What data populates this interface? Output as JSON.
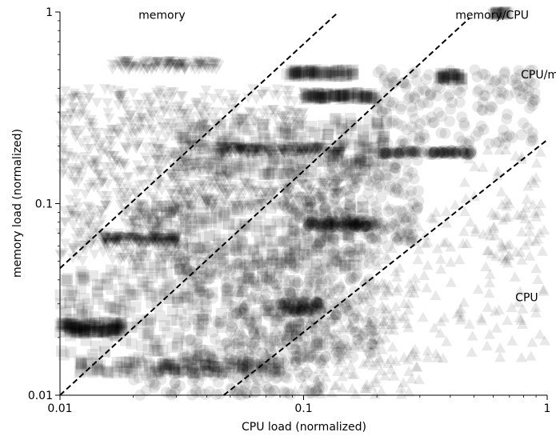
{
  "chart_data": {
    "type": "scatter",
    "title": "",
    "xlabel": "CPU load (normalized)",
    "ylabel": "memory load (normalized)",
    "x_scale": "log",
    "y_scale": "log",
    "xlim": [
      0.01,
      1
    ],
    "ylim": [
      0.01,
      1
    ],
    "x_ticks": [
      {
        "value": 0.01,
        "label": "0.01"
      },
      {
        "value": 0.1,
        "label": "0.1"
      },
      {
        "value": 1,
        "label": "1"
      }
    ],
    "y_ticks": [
      {
        "value": 0.01,
        "label": "0.01"
      },
      {
        "value": 0.1,
        "label": "0.1"
      },
      {
        "value": 1,
        "label": "1"
      }
    ],
    "grid": false,
    "legend": "none",
    "marker_color": "#000000",
    "marker_alpha": 0.09,
    "regions": [
      {
        "label": "memory",
        "x": 0.021,
        "y": 0.92
      },
      {
        "label": "memory/CPU",
        "x": 0.42,
        "y": 0.92
      },
      {
        "label": "CPU/memory",
        "x": 0.78,
        "y": 0.45
      },
      {
        "label": "CPU",
        "x": 0.74,
        "y": 0.031
      }
    ],
    "boundaries": [
      {
        "x": [
          0.01,
          0.139
        ],
        "y": [
          0.046,
          1.0
        ]
      },
      {
        "x": [
          0.01,
          0.48
        ],
        "y": [
          0.01,
          0.93
        ]
      },
      {
        "x": [
          0.047,
          1.0
        ],
        "y": [
          0.01,
          0.215
        ]
      }
    ],
    "series": [
      {
        "marker": "triangle-down",
        "clusters": [
          {
            "x": [
              0.016,
              0.045
            ],
            "y": [
              0.5,
              0.56
            ],
            "n": 120
          },
          {
            "x": [
              0.01,
              0.1
            ],
            "y": [
              0.25,
              0.4
            ],
            "n": 200
          },
          {
            "x": [
              0.01,
              0.05
            ],
            "y": [
              0.12,
              0.25
            ],
            "n": 260
          },
          {
            "x": [
              0.01,
              0.035
            ],
            "y": [
              0.05,
              0.12
            ],
            "n": 240
          },
          {
            "x": [
              0.015,
              0.03
            ],
            "y": [
              0.062,
              0.068
            ],
            "n": 140
          },
          {
            "x": [
              0.03,
              0.14
            ],
            "y": [
              0.095,
              0.13
            ],
            "n": 180
          },
          {
            "x": [
              0.045,
              0.15
            ],
            "y": [
              0.18,
              0.2
            ],
            "n": 200
          }
        ]
      },
      {
        "marker": "square",
        "clusters": [
          {
            "x": [
              0.085,
              0.16
            ],
            "y": [
              0.46,
              0.5
            ],
            "n": 90
          },
          {
            "x": [
              0.1,
              0.2
            ],
            "y": [
              0.35,
              0.38
            ],
            "n": 110
          },
          {
            "x": [
              0.03,
              0.22
            ],
            "y": [
              0.14,
              0.28
            ],
            "n": 300
          },
          {
            "x": [
              0.02,
              0.18
            ],
            "y": [
              0.045,
              0.1
            ],
            "n": 300
          },
          {
            "x": [
              0.01,
              0.12
            ],
            "y": [
              0.015,
              0.045
            ],
            "n": 320
          },
          {
            "x": [
              0.01,
              0.018
            ],
            "y": [
              0.021,
              0.024
            ],
            "n": 140
          },
          {
            "x": [
              0.012,
              0.08
            ],
            "y": [
              0.013,
              0.015
            ],
            "n": 150
          },
          {
            "x": [
              0.36,
              0.45
            ],
            "y": [
              0.44,
              0.48
            ],
            "n": 40
          },
          {
            "x": [
              0.6,
              0.7
            ],
            "y": [
              0.97,
              1.0
            ],
            "n": 20
          }
        ]
      },
      {
        "marker": "circle",
        "clusters": [
          {
            "x": [
              0.2,
              0.5
            ],
            "y": [
              0.18,
              0.19
            ],
            "n": 120
          },
          {
            "x": [
              0.2,
              0.9
            ],
            "y": [
              0.2,
              0.5
            ],
            "n": 180
          },
          {
            "x": [
              0.08,
              0.3
            ],
            "y": [
              0.06,
              0.17
            ],
            "n": 260
          },
          {
            "x": [
              0.03,
              0.2
            ],
            "y": [
              0.015,
              0.06
            ],
            "n": 380
          },
          {
            "x": [
              0.1,
              0.2
            ],
            "y": [
              0.075,
              0.082
            ],
            "n": 120
          },
          {
            "x": [
              0.08,
              0.12
            ],
            "y": [
              0.027,
              0.031
            ],
            "n": 80
          },
          {
            "x": [
              0.02,
              0.12
            ],
            "y": [
              0.01,
              0.016
            ],
            "n": 160
          }
        ]
      },
      {
        "marker": "triangle-up",
        "clusters": [
          {
            "x": [
              0.05,
              0.3
            ],
            "y": [
              0.01,
              0.04
            ],
            "n": 220
          },
          {
            "x": [
              0.2,
              1.0
            ],
            "y": [
              0.015,
              0.1
            ],
            "n": 160
          },
          {
            "x": [
              0.4,
              1.0
            ],
            "y": [
              0.05,
              0.2
            ],
            "n": 50
          }
        ]
      }
    ]
  }
}
